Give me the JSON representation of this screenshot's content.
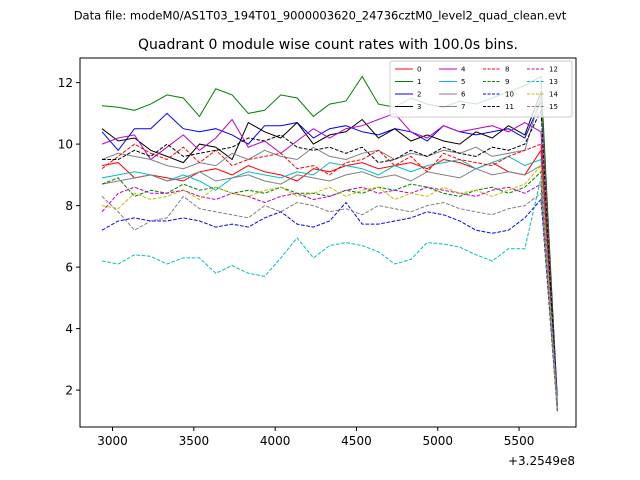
{
  "chart_data": {
    "type": "line",
    "suptitle": "Data file: modeM0/AS1T03_194T01_9000003620_24736cztM0_level2_quad_clean.evt",
    "title": "Quadrant 0 module wise count rates with 100.0s bins.",
    "xlabel": "",
    "ylabel": "",
    "x_offset_label": "+3.2549e8",
    "xlim": [
      2800,
      5850
    ],
    "ylim": [
      0.8,
      12.8
    ],
    "x_ticks": [
      3000,
      3500,
      4000,
      4500,
      5000,
      5500
    ],
    "y_ticks": [
      2,
      4,
      6,
      8,
      10,
      12
    ],
    "grid": false,
    "legend_position": "top-right",
    "legend_columns": 4,
    "x": [
      2935,
      3035,
      3135,
      3235,
      3335,
      3435,
      3535,
      3635,
      3735,
      3835,
      3935,
      4035,
      4135,
      4235,
      4335,
      4435,
      4535,
      4635,
      4735,
      4835,
      4935,
      5035,
      5135,
      5235,
      5335,
      5435,
      5535,
      5635,
      5735
    ],
    "series": [
      {
        "name": "0",
        "color": "#ff0000",
        "dash": "solid",
        "values": [
          9.3,
          9.4,
          8.9,
          9.0,
          8.9,
          8.8,
          9.1,
          9.2,
          9.0,
          9.3,
          9.1,
          9.0,
          8.8,
          9.2,
          9.1,
          9.3,
          9.4,
          9.2,
          9.3,
          9.4,
          9.2,
          9.5,
          9.4,
          9.2,
          9.4,
          9.1,
          9.0,
          9.8,
          1.5
        ]
      },
      {
        "name": "1",
        "color": "#008000",
        "dash": "solid",
        "values": [
          11.25,
          11.2,
          11.1,
          11.3,
          11.6,
          11.5,
          10.9,
          11.8,
          11.6,
          11.0,
          11.1,
          11.6,
          11.5,
          10.9,
          11.3,
          11.4,
          12.2,
          11.3,
          11.2,
          11.5,
          11.3,
          11.2,
          11.4,
          11.3,
          11.5,
          11.7,
          11.9,
          12.2,
          1.6
        ]
      },
      {
        "name": "2",
        "color": "#0000ff",
        "dash": "solid",
        "values": [
          10.4,
          9.8,
          10.5,
          10.5,
          11.0,
          10.5,
          10.4,
          10.5,
          10.3,
          10.0,
          10.6,
          10.6,
          10.7,
          10.2,
          10.5,
          10.6,
          10.4,
          10.3,
          10.5,
          10.4,
          10.1,
          10.6,
          10.4,
          10.3,
          10.4,
          10.5,
          10.2,
          11.4,
          1.8
        ]
      },
      {
        "name": "3",
        "color": "#000000",
        "dash": "solid",
        "values": [
          10.5,
          10.1,
          10.2,
          9.8,
          9.6,
          9.4,
          10.0,
          9.9,
          9.5,
          10.7,
          10.4,
          10.2,
          10.7,
          10.0,
          10.3,
          10.4,
          10.8,
          10.2,
          10.5,
          10.1,
          10.3,
          10.1,
          10.0,
          10.4,
          10.2,
          10.6,
          10.3,
          11.7,
          1.5
        ]
      },
      {
        "name": "4",
        "color": "#bf00bf",
        "dash": "solid",
        "values": [
          10.0,
          10.2,
          10.3,
          9.5,
          9.9,
          10.3,
          9.8,
          10.2,
          10.8,
          9.9,
          10.1,
          9.7,
          10.1,
          10.5,
          10.2,
          10.5,
          10.6,
          10.8,
          11.0,
          10.4,
          10.2,
          10.6,
          10.4,
          10.5,
          10.6,
          10.4,
          10.7,
          10.4,
          1.6
        ]
      },
      {
        "name": "5",
        "color": "#00bfbf",
        "dash": "solid",
        "values": [
          8.9,
          9.0,
          9.1,
          9.0,
          8.8,
          9.0,
          8.8,
          8.5,
          8.9,
          9.1,
          9.0,
          8.9,
          9.1,
          9.0,
          9.4,
          9.3,
          9.2,
          9.0,
          9.3,
          9.1,
          9.3,
          9.4,
          9.5,
          9.2,
          9.4,
          9.6,
          9.3,
          9.5,
          1.4
        ]
      },
      {
        "name": "6",
        "color": "#808080",
        "dash": "solid",
        "values": [
          9.5,
          9.7,
          9.6,
          9.5,
          9.3,
          9.2,
          9.4,
          9.3,
          9.7,
          9.5,
          9.8,
          9.6,
          9.5,
          9.9,
          9.6,
          9.5,
          9.7,
          9.8,
          9.5,
          9.7,
          9.6,
          9.8,
          9.7,
          9.9,
          9.6,
          9.7,
          9.8,
          11.6,
          1.4
        ]
      },
      {
        "name": "7",
        "color": "#808080",
        "dash": "solid",
        "values": [
          8.7,
          8.8,
          8.9,
          9.0,
          8.8,
          8.9,
          9.1,
          8.8,
          8.9,
          9.0,
          8.8,
          8.7,
          9.0,
          8.9,
          8.8,
          9.0,
          9.1,
          8.9,
          9.0,
          8.8,
          9.1,
          9.0,
          8.9,
          9.2,
          9.0,
          9.1,
          9.0,
          9.3,
          1.4
        ]
      },
      {
        "name": "8",
        "color": "#ff0000",
        "dash": "dashed",
        "values": [
          9.2,
          9.6,
          10.0,
          9.7,
          9.5,
          9.9,
          9.4,
          9.8,
          9.3,
          9.5,
          9.6,
          9.7,
          9.2,
          9.3,
          9.0,
          9.4,
          9.5,
          9.8,
          9.3,
          9.6,
          9.1,
          9.7,
          9.5,
          9.4,
          9.3,
          9.6,
          9.8,
          10.0,
          1.5
        ]
      },
      {
        "name": "9",
        "color": "#008000",
        "dash": "dashed",
        "values": [
          8.7,
          8.9,
          8.3,
          8.5,
          8.4,
          8.7,
          8.5,
          8.6,
          8.4,
          8.5,
          8.4,
          8.6,
          8.4,
          8.4,
          8.3,
          8.5,
          8.4,
          8.6,
          8.5,
          8.7,
          8.6,
          8.4,
          8.3,
          8.5,
          8.6,
          8.4,
          8.6,
          9.1,
          1.5
        ]
      },
      {
        "name": "10",
        "color": "#0000ff",
        "dash": "dashed",
        "values": [
          7.2,
          7.5,
          7.6,
          7.5,
          7.5,
          7.6,
          7.5,
          7.3,
          7.4,
          7.3,
          7.6,
          7.8,
          7.4,
          7.3,
          7.5,
          8.1,
          7.4,
          7.4,
          7.5,
          7.6,
          7.8,
          7.7,
          7.5,
          7.2,
          7.1,
          7.2,
          7.6,
          8.2,
          1.3
        ]
      },
      {
        "name": "11",
        "color": "#000000",
        "dash": "dashed",
        "values": [
          9.5,
          9.5,
          9.8,
          9.6,
          10.0,
          9.6,
          9.7,
          9.8,
          9.9,
          10.2,
          10.1,
          10.3,
          9.9,
          9.8,
          9.9,
          9.7,
          9.9,
          9.4,
          9.5,
          9.8,
          9.6,
          9.9,
          9.7,
          9.6,
          9.9,
          9.8,
          10.0,
          11.1,
          1.4
        ]
      },
      {
        "name": "12",
        "color": "#bf00bf",
        "dash": "dashed",
        "values": [
          7.8,
          8.4,
          8.6,
          8.4,
          8.4,
          8.5,
          8.3,
          8.2,
          8.4,
          8.3,
          8.1,
          8.3,
          8.4,
          8.2,
          8.3,
          8.5,
          8.6,
          8.4,
          8.5,
          8.4,
          8.6,
          8.5,
          8.4,
          8.3,
          8.5,
          8.6,
          8.4,
          8.7,
          1.5
        ]
      },
      {
        "name": "13",
        "color": "#00bfbf",
        "dash": "dashed",
        "values": [
          6.2,
          6.1,
          6.4,
          6.35,
          6.1,
          6.3,
          6.3,
          5.8,
          6.05,
          5.8,
          5.7,
          6.3,
          6.95,
          6.3,
          6.7,
          6.8,
          6.7,
          6.5,
          6.1,
          6.25,
          6.8,
          6.75,
          6.65,
          6.4,
          6.2,
          6.6,
          6.6,
          8.9,
          1.6
        ]
      },
      {
        "name": "14",
        "color": "#bfbf00",
        "dash": "dashed",
        "values": [
          8.0,
          7.9,
          8.4,
          8.2,
          8.3,
          8.5,
          8.2,
          8.6,
          8.4,
          8.3,
          8.5,
          8.6,
          8.3,
          8.4,
          8.6,
          8.3,
          8.5,
          8.6,
          8.2,
          8.4,
          8.3,
          8.6,
          8.4,
          8.5,
          8.3,
          8.5,
          8.7,
          9.3,
          1.4
        ]
      },
      {
        "name": "15",
        "color": "#808080",
        "dash": "dashed",
        "values": [
          8.3,
          7.8,
          7.2,
          7.5,
          7.6,
          8.3,
          7.9,
          7.8,
          7.7,
          7.6,
          8.0,
          7.8,
          8.1,
          8.0,
          7.8,
          7.9,
          7.7,
          8.0,
          7.9,
          7.8,
          8.0,
          8.1,
          7.9,
          7.8,
          7.7,
          7.9,
          8.0,
          8.4,
          1.4
        ]
      }
    ]
  }
}
